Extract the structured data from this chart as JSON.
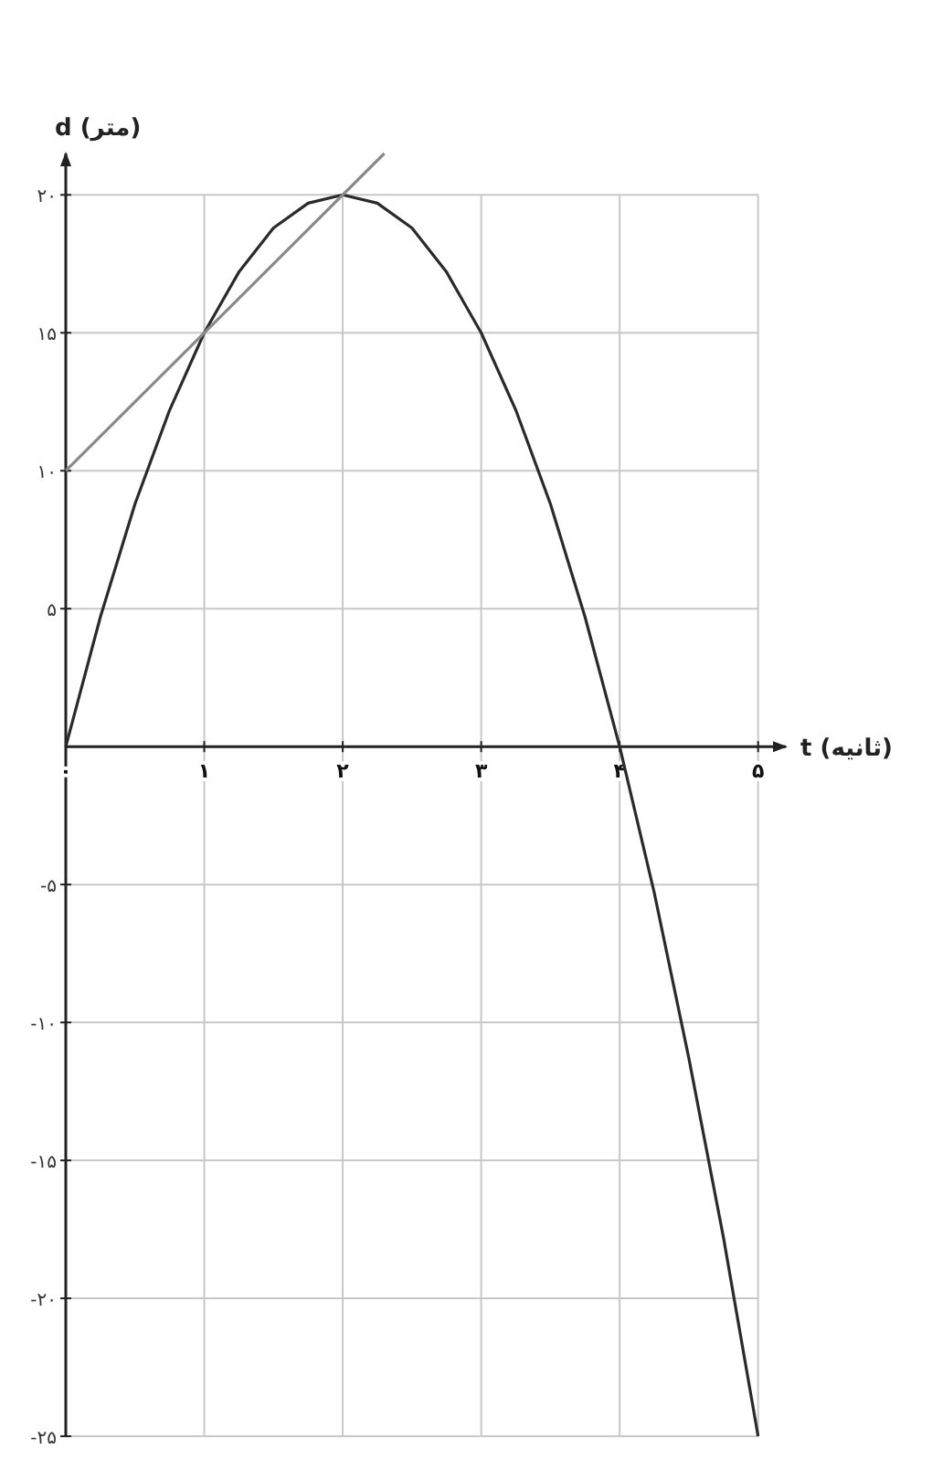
{
  "chart_data": {
    "type": "line",
    "xlabel": "t (ثانیه)",
    "ylabel": "d (متر)",
    "xlim": [
      0,
      5.2
    ],
    "ylim": [
      -25,
      21.5
    ],
    "xticks": [
      {
        "value": 0,
        "label": "۰"
      },
      {
        "value": 1,
        "label": "۱"
      },
      {
        "value": 2,
        "label": "۲"
      },
      {
        "value": 3,
        "label": "۳"
      },
      {
        "value": 4,
        "label": "۴"
      },
      {
        "value": 5,
        "label": "۵"
      }
    ],
    "yticks": [
      {
        "value": -25,
        "label": "-۲۵"
      },
      {
        "value": -20,
        "label": "-۲۰"
      },
      {
        "value": -15,
        "label": "-۱۵"
      },
      {
        "value": -10,
        "label": "-۱۰"
      },
      {
        "value": -5,
        "label": "-۵"
      },
      {
        "value": 5,
        "label": "۵"
      },
      {
        "value": 10,
        "label": "۱۰"
      },
      {
        "value": 15,
        "label": "۱۵"
      },
      {
        "value": 20,
        "label": "۲۰"
      }
    ],
    "grid": true,
    "series": [
      {
        "color": "#2a2a2a",
        "x": [
          0,
          0.25,
          0.5,
          0.75,
          1,
          1.25,
          1.5,
          1.75,
          2,
          2.25,
          2.5,
          2.75,
          3,
          3.25,
          3.5,
          3.75,
          4,
          4.25,
          4.5,
          4.75,
          5
        ],
        "values": [
          0,
          4.7,
          8.8,
          12.2,
          15,
          17.2,
          18.8,
          19.7,
          20,
          19.7,
          18.8,
          17.2,
          15,
          12.2,
          8.8,
          4.7,
          0,
          -5.3,
          -11.3,
          -17.8,
          -25
        ]
      },
      {
        "color": "#8a8a8a",
        "x": [
          0,
          2.3
        ],
        "values": [
          10,
          21.5
        ]
      }
    ]
  }
}
